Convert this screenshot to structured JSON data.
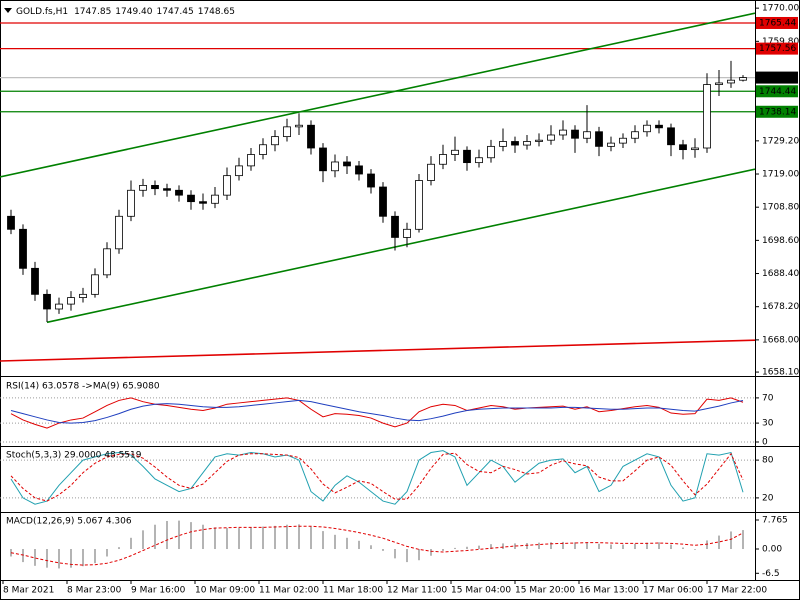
{
  "chart_data": [
    {
      "type": "candlestick",
      "title": "GOLD.fs,H1",
      "ohlc_labels": [
        "1747.85",
        "1749.40",
        "1747.45",
        "1748.65"
      ],
      "up_color": "#ffffff",
      "down_color": "#000000",
      "wick_color": "#000000",
      "candles": [
        [
          1706,
          1708,
          1700.5,
          1702
        ],
        [
          1702,
          1703.5,
          1688,
          1690
        ],
        [
          1690,
          1692,
          1680,
          1682
        ],
        [
          1682,
          1683.5,
          1673.5,
          1677.5
        ],
        [
          1677.5,
          1681,
          1676,
          1679
        ],
        [
          1679,
          1683,
          1677,
          1681
        ],
        [
          1681,
          1684,
          1679.5,
          1682
        ],
        [
          1682,
          1690,
          1681,
          1688
        ],
        [
          1688,
          1698,
          1687,
          1696
        ],
        [
          1696,
          1708,
          1694.5,
          1706
        ],
        [
          1706,
          1717,
          1704.5,
          1714
        ],
        [
          1714,
          1717.5,
          1712,
          1715.5
        ],
        [
          1715.5,
          1717,
          1712.5,
          1714.5
        ],
        [
          1714.5,
          1716,
          1712,
          1714
        ],
        [
          1714,
          1715.5,
          1710.5,
          1712.5
        ],
        [
          1712.5,
          1714,
          1708,
          1710.5
        ],
        [
          1710.5,
          1713,
          1708,
          1710
        ],
        [
          1710,
          1715,
          1708.5,
          1712.5
        ],
        [
          1712.5,
          1721,
          1711,
          1718.5
        ],
        [
          1718.5,
          1724,
          1717,
          1721.5
        ],
        [
          1721.5,
          1727,
          1720,
          1725
        ],
        [
          1725,
          1730,
          1723.5,
          1728
        ],
        [
          1728,
          1732.5,
          1726,
          1730.5
        ],
        [
          1730.5,
          1736,
          1729,
          1733.5
        ],
        [
          1733.5,
          1737.7,
          1731,
          1734
        ],
        [
          1734,
          1735.5,
          1725,
          1727
        ],
        [
          1727,
          1728.5,
          1716.5,
          1720
        ],
        [
          1720,
          1725,
          1718,
          1722.7
        ],
        [
          1722.7,
          1724.5,
          1719,
          1721.5
        ],
        [
          1721.5,
          1723,
          1717,
          1719
        ],
        [
          1719,
          1720.5,
          1713,
          1715
        ],
        [
          1715,
          1716.5,
          1704,
          1706
        ],
        [
          1706,
          1707.5,
          1695.5,
          1699.5
        ],
        [
          1699.5,
          1704,
          1696.5,
          1702
        ],
        [
          1702,
          1719,
          1701,
          1717
        ],
        [
          1717,
          1724.5,
          1715.5,
          1722
        ],
        [
          1722,
          1728,
          1720.5,
          1725
        ],
        [
          1725,
          1730.5,
          1723,
          1726.3
        ],
        [
          1726.3,
          1727.5,
          1720,
          1722.5
        ],
        [
          1722.5,
          1726.5,
          1721,
          1724
        ],
        [
          1724,
          1729.5,
          1722.5,
          1727.5
        ],
        [
          1727.5,
          1733,
          1726,
          1729
        ],
        [
          1729,
          1730.5,
          1725.5,
          1727.9
        ],
        [
          1727.9,
          1731,
          1726.5,
          1729
        ],
        [
          1729,
          1731.5,
          1727.5,
          1729.4
        ],
        [
          1729.4,
          1734,
          1728,
          1731
        ],
        [
          1731,
          1735.5,
          1729.5,
          1732.5
        ],
        [
          1732.5,
          1734,
          1725.5,
          1730
        ],
        [
          1730,
          1740.2,
          1728.5,
          1732
        ],
        [
          1732,
          1733.5,
          1724.5,
          1727.5
        ],
        [
          1727.5,
          1730.5,
          1726,
          1728.5
        ],
        [
          1728.5,
          1731.5,
          1727,
          1730
        ],
        [
          1730,
          1734,
          1728.5,
          1732
        ],
        [
          1732,
          1735.5,
          1730.5,
          1734
        ],
        [
          1734,
          1735.5,
          1731.5,
          1733.2
        ],
        [
          1733.2,
          1734.5,
          1724.5,
          1728
        ],
        [
          1728,
          1729.5,
          1723.5,
          1726.5
        ],
        [
          1726.5,
          1730,
          1724,
          1727
        ],
        [
          1727,
          1750,
          1725.5,
          1746.5
        ],
        [
          1746.5,
          1751,
          1743,
          1747
        ],
        [
          1747,
          1753.8,
          1745.5,
          1747.85
        ],
        [
          1747.85,
          1749.4,
          1747.45,
          1748.65
        ]
      ],
      "ylim": [
        1657.2,
        1772.2
      ],
      "yticks": [
        {
          "value": 1770,
          "label": "1770.00"
        },
        {
          "value": 1759.8,
          "label": "1759.80"
        },
        {
          "value": 1729.2,
          "label": "1729.20"
        },
        {
          "value": 1719,
          "label": "1719.00"
        },
        {
          "value": 1708.8,
          "label": "1708.80"
        },
        {
          "value": 1698.6,
          "label": "1698.60"
        },
        {
          "value": 1688.4,
          "label": "1688.40"
        },
        {
          "value": 1678.2,
          "label": "1678.20"
        },
        {
          "value": 1668,
          "label": "1668.00"
        },
        {
          "value": 1658.1,
          "label": "1658.10"
        }
      ],
      "levels": [
        {
          "value": 1765.44,
          "color": "#e00000"
        },
        {
          "value": 1757.56,
          "color": "#e00000"
        },
        {
          "value": 1748.65,
          "color": "#000000",
          "line_color": "#c0c0c0"
        },
        {
          "value": 1744.44,
          "color": "#008000"
        },
        {
          "value": 1738.14,
          "color": "#008000"
        }
      ],
      "trendlines": [
        {
          "color": "#008000",
          "bars": [
            -1,
            62
          ],
          "prices": [
            1718.05,
            1768.46
          ]
        },
        {
          "color": "#008000",
          "bars": [
            3,
            62
          ],
          "prices": [
            1673.4,
            1720.5
          ]
        },
        {
          "color": "#e00000",
          "bars": [
            -1,
            62
          ],
          "prices": [
            1661.5,
            1667.9
          ]
        }
      ],
      "x_labels": [
        "8 Mar 2021",
        "8 Mar 23:00",
        "9 Mar 16:00",
        "10 Mar 09:00",
        "11 Mar 02:00",
        "11 Mar 18:00",
        "12 Mar 11:00",
        "15 Mar 04:00",
        "15 Mar 20:00",
        "16 Mar 13:00",
        "17 Mar 06:00",
        "17 Mar 22:00"
      ]
    },
    {
      "type": "line",
      "title": "RSI(14) 63.0578 ->MA(9) 65.9080",
      "ylim": [
        0,
        100
      ],
      "yticks": [
        70,
        30,
        0
      ],
      "grid": true,
      "series": [
        {
          "color": "#e00000",
          "dash": false,
          "values": [
            45,
            35,
            28,
            22,
            30,
            35,
            38,
            48,
            58,
            66,
            70,
            64,
            60,
            58,
            55,
            52,
            50,
            54,
            60,
            62,
            64,
            66,
            68,
            70,
            66,
            52,
            40,
            45,
            44,
            42,
            38,
            30,
            24,
            30,
            48,
            56,
            60,
            58,
            50,
            54,
            58,
            56,
            52,
            54,
            55,
            56,
            57,
            52,
            56,
            48,
            50,
            53,
            56,
            58,
            55,
            46,
            44,
            45,
            68,
            66,
            70,
            63.06
          ]
        },
        {
          "color": "#1f3fbf",
          "dash": false,
          "values": [
            50,
            45,
            40,
            35,
            31,
            30,
            31,
            34,
            39,
            45,
            52,
            57,
            60,
            61,
            60,
            58,
            56,
            55,
            55,
            56,
            58,
            60,
            62,
            64,
            66,
            64,
            60,
            56,
            52,
            48,
            45,
            42,
            38,
            35,
            34,
            37,
            41,
            46,
            50,
            52,
            53,
            54,
            54,
            54,
            54,
            54,
            55,
            55,
            54,
            53,
            52,
            52,
            53,
            54,
            54,
            52,
            50,
            49,
            53,
            57,
            62,
            65.91
          ]
        }
      ]
    },
    {
      "type": "line",
      "title": "Stoch(5,3,3) 29.0000 48.5519",
      "ylim": [
        0,
        100
      ],
      "yticks": [
        80,
        20
      ],
      "grid": true,
      "series": [
        {
          "color": "#20a0b0",
          "dash": false,
          "values": [
            50,
            20,
            10,
            15,
            40,
            60,
            80,
            85,
            90,
            92,
            88,
            70,
            50,
            40,
            30,
            35,
            60,
            85,
            90,
            88,
            92,
            90,
            85,
            88,
            80,
            30,
            15,
            40,
            55,
            45,
            30,
            15,
            10,
            30,
            80,
            92,
            95,
            85,
            40,
            60,
            80,
            70,
            45,
            60,
            75,
            80,
            82,
            60,
            70,
            30,
            40,
            70,
            80,
            90,
            85,
            40,
            15,
            20,
            90,
            88,
            92,
            29
          ]
        },
        {
          "color": "#e00000",
          "dash": true,
          "values": [
            55,
            35,
            20,
            15,
            25,
            40,
            60,
            75,
            85,
            89,
            90,
            83,
            69,
            53,
            40,
            35,
            42,
            60,
            78,
            88,
            90,
            90,
            89,
            88,
            84,
            66,
            42,
            28,
            37,
            47,
            43,
            30,
            18,
            18,
            40,
            67,
            89,
            91,
            73,
            62,
            60,
            70,
            65,
            58,
            60,
            72,
            79,
            74,
            71,
            53,
            47,
            47,
            63,
            80,
            85,
            72,
            47,
            25,
            42,
            66,
            90,
            48.55
          ]
        }
      ]
    },
    {
      "type": "combo",
      "title": "MACD(12,26,9) 5.067 4.306",
      "ylim": [
        -7.76,
        9.64
      ],
      "yticks": [
        7.765,
        {
          "value": 0,
          "label": "0.00"
        },
        -6.5
      ],
      "grid": false,
      "series": [
        {
          "style": "bar",
          "color": "#b4b4b4",
          "dash": false,
          "values": [
            -2,
            -3.5,
            -4.5,
            -5,
            -5.2,
            -5,
            -4.6,
            -3.8,
            -2,
            0.5,
            3,
            5,
            6.5,
            7.5,
            7.6,
            7.2,
            6.5,
            5.8,
            5.6,
            5.6,
            5.8,
            6,
            6.2,
            6.5,
            6.6,
            6,
            4.8,
            3.8,
            3,
            2.2,
            1,
            -0.5,
            -2.5,
            -3.5,
            -3,
            -1.8,
            -0.5,
            0.3,
            0.6,
            0.9,
            1.3,
            1.5,
            1.5,
            1.6,
            1.7,
            1.8,
            1.9,
            1.8,
            1.8,
            1.4,
            1.2,
            1.2,
            1.4,
            1.7,
            1.8,
            1.2,
            0.4,
            -0.2,
            2.3,
            3.6,
            4.7,
            5.07
          ]
        },
        {
          "style": "line",
          "color": "#e00000",
          "dash": true,
          "values": [
            -1,
            -1.6,
            -2.4,
            -3.1,
            -3.7,
            -4.1,
            -4.3,
            -4.2,
            -3.8,
            -3,
            -1.8,
            -0.4,
            1,
            2.4,
            3.6,
            4.6,
            5.2,
            5.6,
            5.7,
            5.8,
            5.8,
            5.8,
            5.9,
            6,
            6.1,
            6.1,
            5.9,
            5.5,
            5,
            4.4,
            3.7,
            2.9,
            1.8,
            0.7,
            -0.1,
            -0.6,
            -0.8,
            -0.6,
            -0.4,
            -0.1,
            0.2,
            0.5,
            0.8,
            1,
            1.2,
            1.4,
            1.5,
            1.6,
            1.7,
            1.7,
            1.6,
            1.5,
            1.5,
            1.5,
            1.6,
            1.5,
            1.3,
            1,
            1.3,
            1.9,
            2.6,
            4.31
          ]
        }
      ]
    }
  ]
}
